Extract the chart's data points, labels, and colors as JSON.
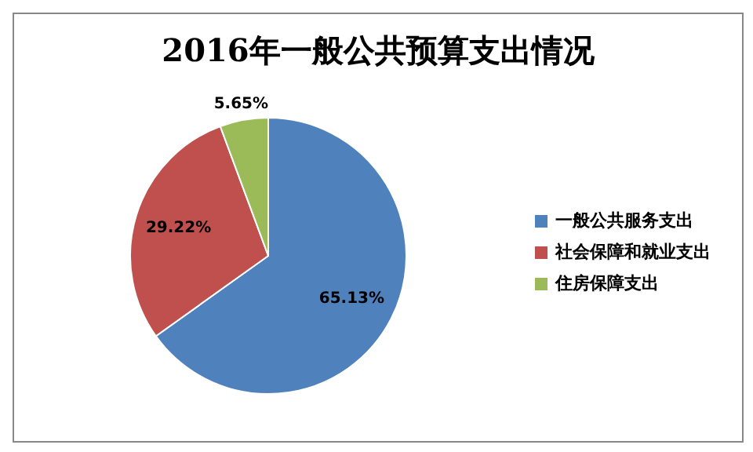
{
  "chart_data": {
    "type": "pie",
    "title": "2016年一般公共预算支出情况",
    "categories": [
      "一般公共服务支出",
      "社会保障和就业支出",
      "住房保障支出"
    ],
    "values": [
      65.13,
      29.22,
      5.65
    ],
    "colors": [
      "#4f81bd",
      "#c0504d",
      "#9bbb59"
    ],
    "value_labels": [
      "65.13%",
      "29.22%",
      "5.65%"
    ],
    "legend": "right"
  }
}
